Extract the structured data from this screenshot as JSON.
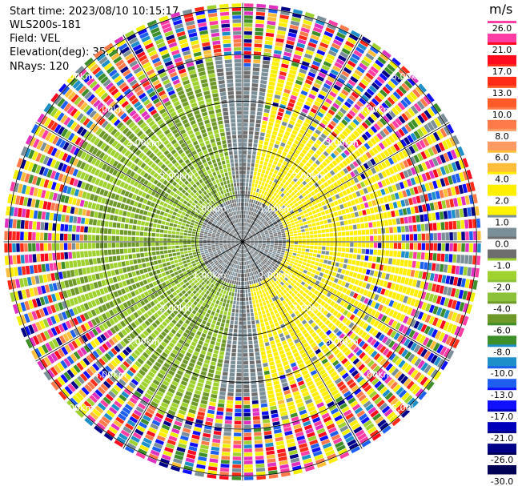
{
  "header": {
    "start_time": "Start time: 2023/08/10 10:15:17",
    "instrument": "WLS200s-181",
    "field": "Field: VEL",
    "elevation": "Elevation(deg): 35.30",
    "nrays": "NRays: 120"
  },
  "colorbar": {
    "unit": "m/s",
    "ticks": [
      "26.0",
      "21.0",
      "17.0",
      "13.0",
      "10.0",
      "8.0",
      "6.0",
      "4.0",
      "2.0",
      "1.0",
      "0.0",
      "-1.0",
      "-2.0",
      "-4.0",
      "-6.0",
      "-8.0",
      "-10.0",
      "-13.0",
      "-17.0",
      "-21.0",
      "-26.0",
      "-30.0"
    ],
    "colors": [
      "#ff3da5",
      "#ff0a1e",
      "#ff2c18",
      "#ff5a28",
      "#ff7a4a",
      "#ff9a62",
      "#ffbe3a",
      "#ffee00",
      "#fff200",
      "#7b8f99",
      "#6e6e6e",
      "#9fd12f",
      "#8cc13a",
      "#6f9a2a",
      "#3e8e2a",
      "#1e8fc8",
      "#1e5ff0",
      "#1010ff",
      "#0000bb",
      "#000088",
      "#000055"
    ]
  },
  "chart_data": {
    "type": "ppi",
    "field": "VEL",
    "units": "m/s",
    "nrays": 120,
    "elevation_deg": 35.3,
    "range_ring_labels_km": [
      "1.00km",
      "2.00km",
      "3.00km",
      "4.00km",
      "5.00km"
    ],
    "range_rings_km": [
      1,
      2,
      3,
      4,
      5
    ],
    "azimuth_spokes_deg": [
      0,
      30,
      60,
      90,
      120,
      150,
      180,
      210,
      240,
      270,
      300,
      330
    ],
    "max_range_km": 5.1,
    "color_scale": {
      "boundaries": [
        -30,
        -26,
        -21,
        -17,
        -13,
        -10,
        -8,
        -6,
        -4,
        -2,
        -1,
        0,
        1,
        2,
        4,
        6,
        8,
        10,
        13,
        17,
        21,
        26
      ]
    }
  }
}
